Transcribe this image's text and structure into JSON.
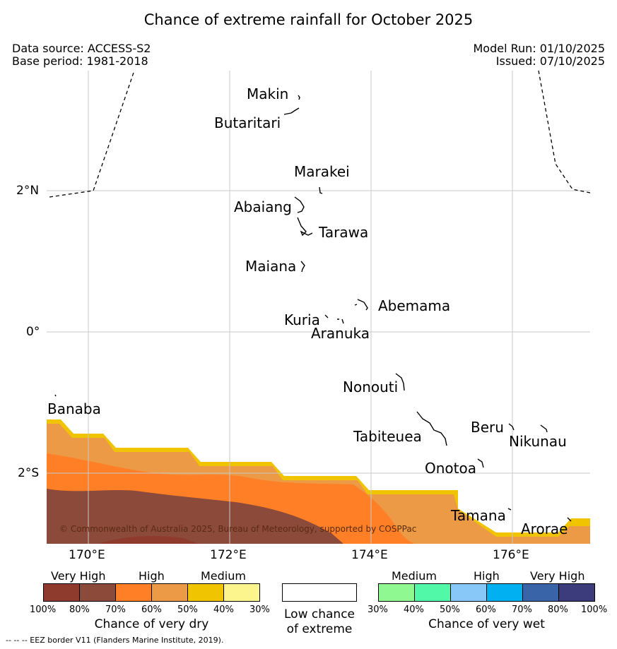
{
  "header": {
    "title": "Chance of extreme rainfall for October 2025",
    "data_source": "Data source: ACCESS-S2",
    "base_period": "Base period: 1981-2018",
    "model_run": "Model Run: 01/10/2025",
    "issued": "Issued: 07/10/2025"
  },
  "map": {
    "lat_labels": [
      "2°N",
      "0°",
      "2°S"
    ],
    "lon_labels": [
      "170°E",
      "172°E",
      "174°E",
      "176°E"
    ],
    "islands": [
      "Makin",
      "Butaritari",
      "Marakei",
      "Abaiang",
      "Tarawa",
      "Maiana",
      "Abemama",
      "Kuria",
      "Aranuka",
      "Nonouti",
      "Banaba",
      "Tabiteuea",
      "Beru",
      "Nikunau",
      "Onotoa",
      "Tamana",
      "Arorae"
    ],
    "credit": "© Commonwealth of Australia 2025, Bureau of Meteorology, supported by COSPPac",
    "colors": {
      "very_high_dry": "#8c4a3a",
      "high_dry": "#ff7f27",
      "medium_dry_band": "#ec9a45",
      "medium_dry_edge": "#f0c400"
    }
  },
  "legend": {
    "dry": {
      "categories": [
        "Very High",
        "High",
        "Medium"
      ],
      "colors": [
        "#8e3a2c",
        "#8c4a3a",
        "#ff7f27",
        "#ec9a45",
        "#f0c400",
        "#fcf58e"
      ],
      "ticks": [
        "100%",
        "80%",
        "70%",
        "60%",
        "50%",
        "40%",
        "30%"
      ],
      "title": "Chance of very dry"
    },
    "low": {
      "line1": "Low chance",
      "line2": "of extreme",
      "color": "#ffffff"
    },
    "wet": {
      "categories": [
        "Medium",
        "High",
        "Very High"
      ],
      "colors": [
        "#90f890",
        "#50f8a8",
        "#88c8f8",
        "#00b0f0",
        "#3a64a8",
        "#3c3c7c"
      ],
      "ticks": [
        "30%",
        "40%",
        "50%",
        "60%",
        "70%",
        "80%",
        "100%"
      ],
      "title": "Chance of very wet"
    }
  },
  "footer": {
    "eez": "--  --  -- EEZ border V11 (Flanders Marine Institute, 2019)."
  }
}
